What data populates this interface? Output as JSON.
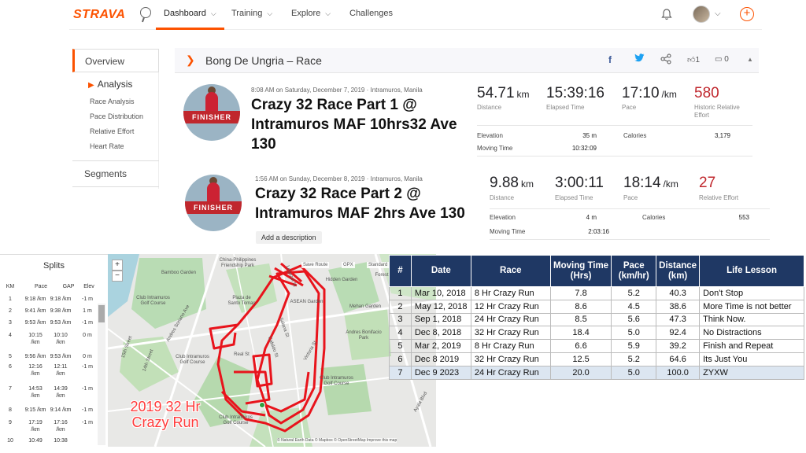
{
  "nav": {
    "logo": "STRAVA",
    "items": [
      {
        "label": "Dashboard",
        "chev": "⌵"
      },
      {
        "label": "Training",
        "chev": "⌵"
      },
      {
        "label": "Explore",
        "chev": "⌵"
      },
      {
        "label": "Challenges"
      }
    ],
    "plus": "+"
  },
  "sidebar": {
    "overview": "Overview",
    "analysis": "Analysis",
    "sub_items": [
      "Race Analysis",
      "Pace Distribution",
      "Relative Effort",
      "Heart Rate"
    ],
    "segments": "Segments"
  },
  "header": {
    "title": "Bong De Ungria – Race",
    "facebook": "f",
    "kudos_count": "1",
    "comments_count": "0"
  },
  "activities": [
    {
      "finisher": "FINISHER",
      "meta": "8:08 AM on Saturday, December 7, 2019 · Intramuros, Manila",
      "title": "Crazy 32 Race Part 1 @ Intramuros MAF 10hrs32 Ave 130",
      "distance": "54.71",
      "distance_unit": "km",
      "distance_label": "Distance",
      "elapsed": "15:39:16",
      "elapsed_label": "Elapsed Time",
      "pace": "17:10",
      "pace_unit": "/km",
      "pace_label": "Pace",
      "effort": "580",
      "effort_label": "Historic Relative Effort",
      "elevation_label": "Elevation",
      "elevation": "35 m",
      "calories_label": "Calories",
      "calories": "3,179",
      "moving_label": "Moving Time",
      "moving": "10:32:09"
    },
    {
      "finisher": "FINISHER",
      "meta": "1:56 AM on Sunday, December 8, 2019 · Intramuros, Manila",
      "title": "Crazy 32 Race Part 2 @ Intramuros MAF 2hrs Ave 130",
      "distance": "9.88",
      "distance_unit": "km",
      "distance_label": "Distance",
      "elapsed": "3:00:11",
      "elapsed_label": "Elapsed Time",
      "pace": "18:14",
      "pace_unit": "/km",
      "pace_label": "Pace",
      "effort": "27",
      "effort_label": "Relative Effort",
      "elevation_label": "Elevation",
      "elevation": "4 m",
      "calories_label": "Calories",
      "calories": "553",
      "moving_label": "Moving Time",
      "moving": "2:03:16",
      "add_description": "Add a description"
    }
  ],
  "splits": {
    "title": "Splits",
    "headers": [
      "KM",
      "Pace",
      "GAP",
      "Elev"
    ],
    "rows": [
      {
        "km": "1",
        "pace": "9:18 /km",
        "gap": "9:18 /km",
        "elev": "-1 m"
      },
      {
        "km": "2",
        "pace": "9:41 /km",
        "gap": "9:38 /km",
        "elev": "1 m"
      },
      {
        "km": "3",
        "pace": "9:53 /km",
        "gap": "9:53 /km",
        "elev": "-1 m"
      },
      {
        "km": "4",
        "pace": "10:15 /km",
        "gap": "10:10 /km",
        "elev": "0 m"
      },
      {
        "km": "5",
        "pace": "9:56 /km",
        "gap": "9:53 /km",
        "elev": "0 m"
      },
      {
        "km": "6",
        "pace": "12:16 /km",
        "gap": "12:11 /km",
        "elev": "-1 m"
      },
      {
        "km": "7",
        "pace": "14:53 /km",
        "gap": "14:39 /km",
        "elev": "-1 m"
      },
      {
        "km": "8",
        "pace": "9:15 /km",
        "gap": "9:14 /km",
        "elev": "-1 m"
      },
      {
        "km": "9",
        "pace": "17:19 /km",
        "gap": "17:16 /km",
        "elev": "-1 m"
      },
      {
        "km": "10",
        "pace": "10:49",
        "gap": "10:38",
        "elev": ""
      }
    ]
  },
  "map": {
    "tools": [
      "Save Route",
      "GPX",
      "Standard"
    ],
    "labels": [
      "China-Philippines Friendship Park",
      "Bamboo Garden",
      "Hidden Garden",
      "Club Intramuros Golf Course",
      "Plaza de Santo Tomas",
      "Mehan Garden",
      "Andres Bonifacio Park",
      "ASEAN Garden",
      "Club Intramuros Golf Course",
      "Club Intramuros Golf Course",
      "Club Intramuros Golf Course",
      "Forest",
      "Andres Soriano Ave",
      "Victoria St",
      "Solana St",
      "Cabildo St",
      "Real St",
      "Legazpi St",
      "15th Street",
      "14th Street",
      "Ayala Blvd"
    ],
    "zoom_in": "+",
    "zoom_out": "−",
    "overlay": "2019 32 Hr Crazy Run",
    "attribution": "© Natural Earth Data © Mapbox © OpenStreetMap Improve this map"
  },
  "race_table": {
    "headers": [
      "#",
      "Date",
      "Race",
      "Moving Time (Hrs)",
      "Pace (km/hr)",
      "Distance (km)",
      "Life Lesson"
    ],
    "rows": [
      [
        "1",
        "Mar 10, 2018",
        "8 Hr Crazy Run",
        "7.8",
        "5.2",
        "40.3",
        "Don't Stop"
      ],
      [
        "2",
        "May 12, 2018",
        "12 Hr Crazy Run",
        "8.6",
        "4.5",
        "38.6",
        "More Time is not better"
      ],
      [
        "3",
        "Sep 1, 2018",
        "24 Hr Crazy Run",
        "8.5",
        "5.6",
        "47.3",
        "Think Now."
      ],
      [
        "4",
        "Dec 8, 2018",
        "32 Hr Crazy Run",
        "18.4",
        "5.0",
        "92.4",
        "No Distractions"
      ],
      [
        "5",
        "Mar 2, 2019",
        "8 Hr Crazy Run",
        "6.6",
        "5.9",
        "39.2",
        "Finish and Repeat"
      ],
      [
        "6",
        "Dec 8 2019",
        "32 Hr Crazy Run",
        "12.5",
        "5.2",
        "64.6",
        "Its Just You"
      ],
      [
        "7",
        "Dec 9 2023",
        "24 Hr Crazy Run",
        "20.0",
        "5.0",
        "100.0",
        "ZYXW"
      ]
    ]
  },
  "colors": {
    "brand": "#fc5200",
    "effort": "#c0272d",
    "route": "#e8141c",
    "table_header": "#1f3864"
  }
}
